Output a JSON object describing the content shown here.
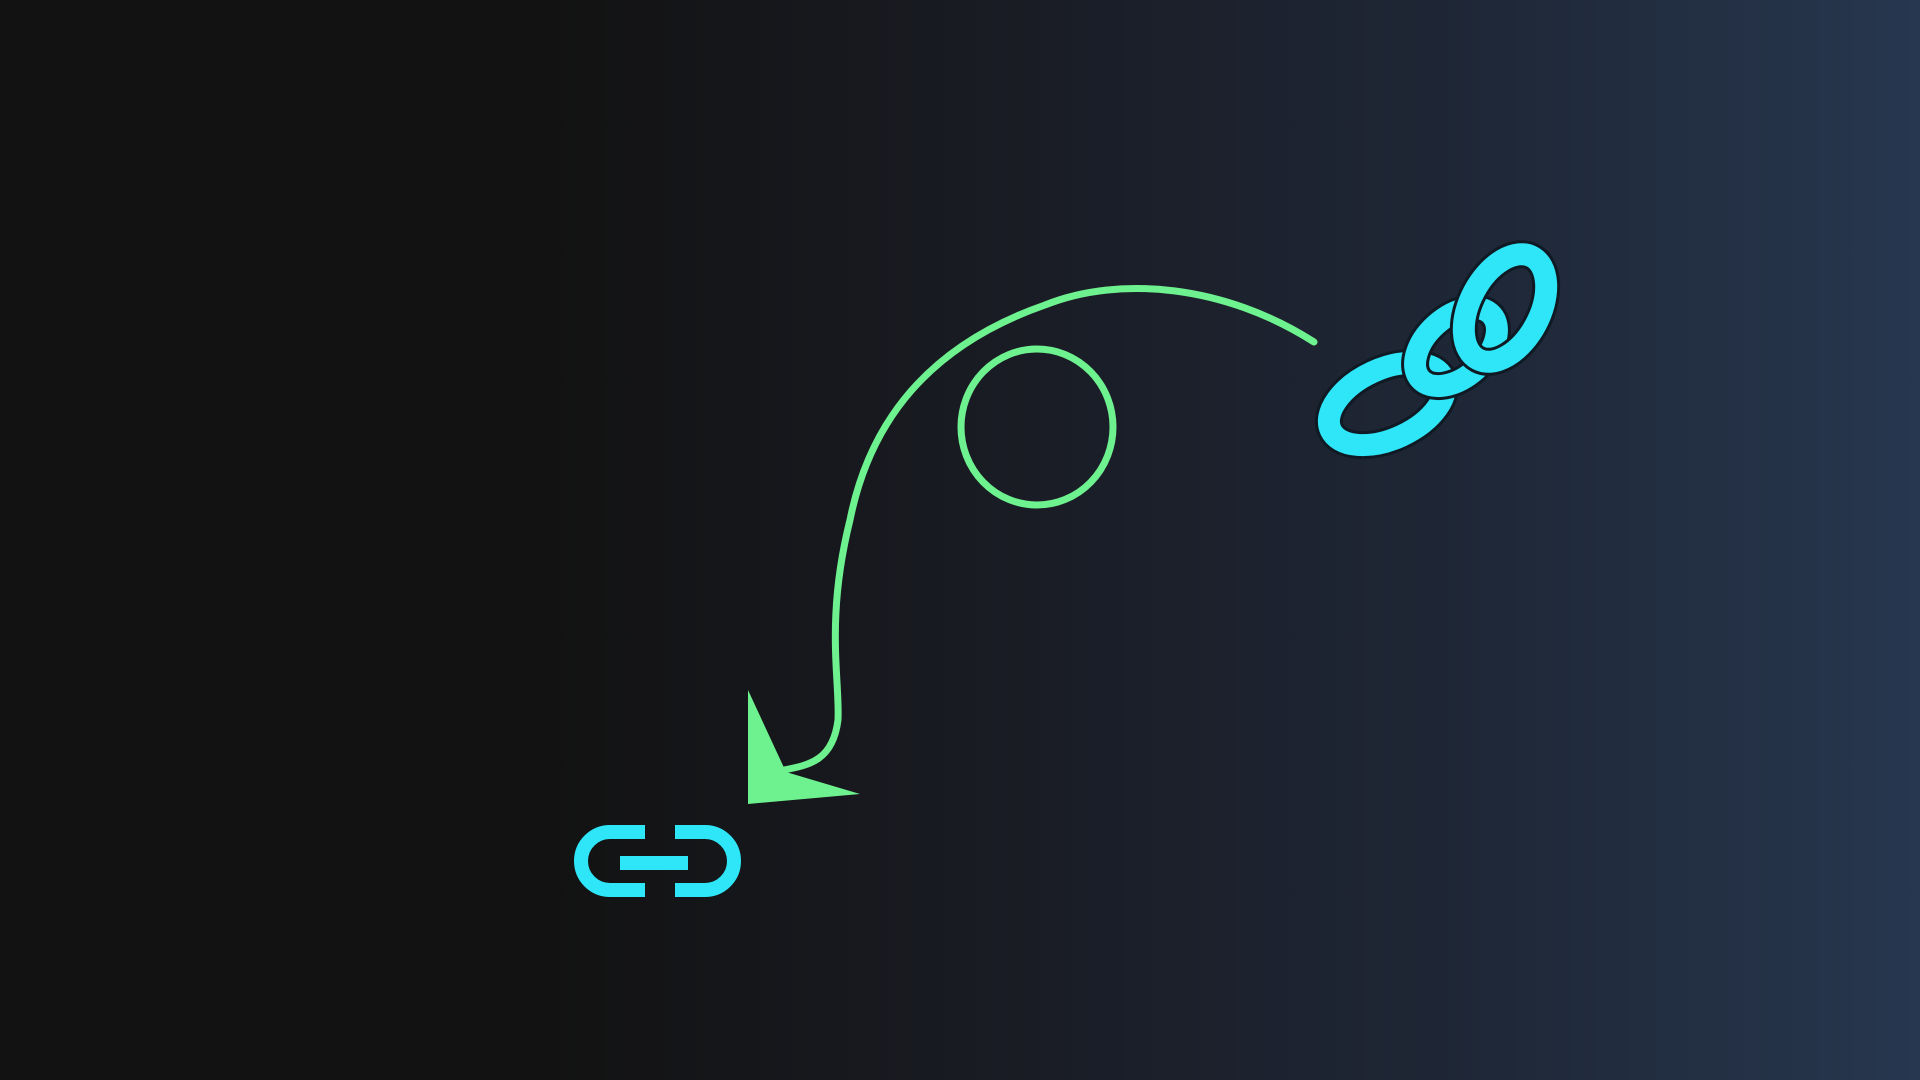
{
  "canvas": {
    "background_gradient": [
      "#121212",
      "#1a1d26",
      "#27374f"
    ]
  },
  "icons": {
    "source": "chain-link-icon",
    "target": "link-icon",
    "connector": "curved-loop-arrow-icon"
  },
  "colors": {
    "link": "#2ee6f7",
    "link_outline": "#0f1a24",
    "arrow": "#6ef28f"
  }
}
